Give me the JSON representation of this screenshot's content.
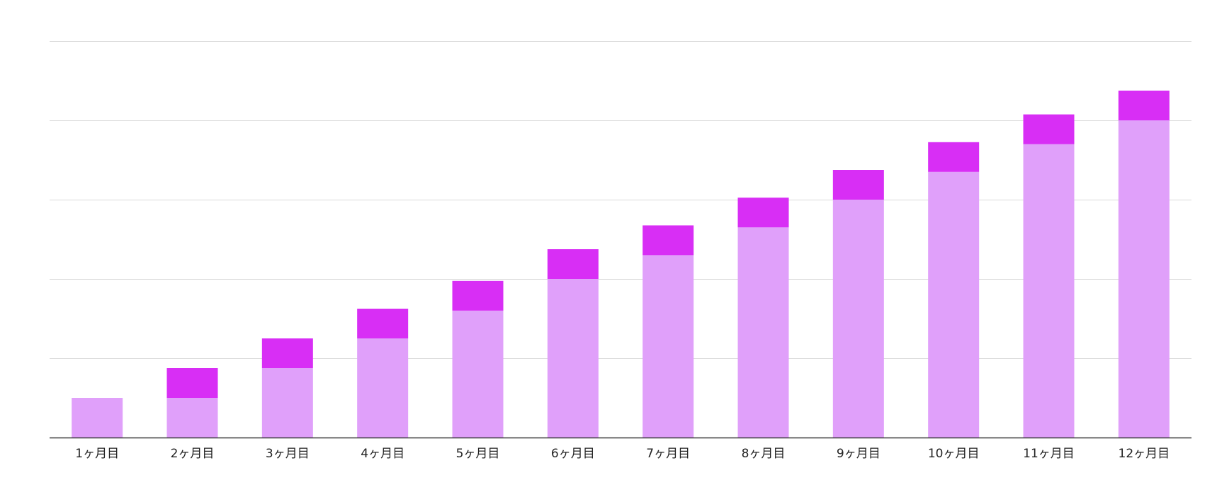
{
  "chart_data": {
    "type": "bar",
    "stacked": true,
    "title": "",
    "xlabel": "",
    "ylabel": "",
    "categories": [
      "1ヶ月目",
      "2ヶ月目",
      "3ヶ月目",
      "4ヶ月目",
      "5ヶ月目",
      "6ヶ月目",
      "7ヶ月目",
      "8ヶ月目",
      "9ヶ月目",
      "10ヶ月目",
      "11ヶ月目",
      "12ヶ月目"
    ],
    "series": [
      {
        "color": "#e0a0fa",
        "values": [
          1,
          1,
          1.75,
          2.5,
          3.2,
          4,
          4.6,
          5.3,
          6,
          6.7,
          7.4,
          8
        ]
      },
      {
        "color": "#d82ef5",
        "values": [
          0,
          0.75,
          0.75,
          0.75,
          0.75,
          0.75,
          0.75,
          0.75,
          0.75,
          0.75,
          0.75,
          0.75
        ]
      }
    ],
    "ylim": [
      0,
      10
    ],
    "grid": true,
    "y_tick_labels_shown": false,
    "legend": "none"
  }
}
